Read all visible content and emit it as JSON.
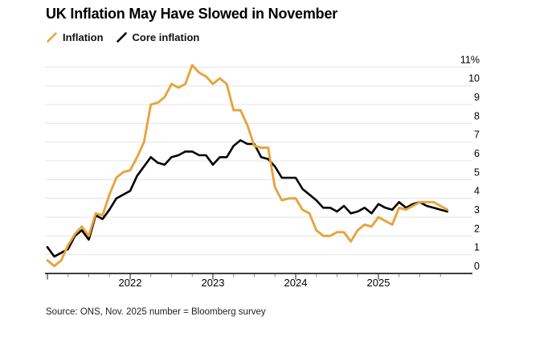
{
  "header": {
    "title": "UK Inflation May Have Slowed in November"
  },
  "legend": {
    "items": [
      {
        "label": "Inflation",
        "color": "#E8A33C"
      },
      {
        "label": "Core inflation",
        "color": "#000000"
      }
    ]
  },
  "footer": {
    "source": "Source: ONS, Nov. 2025 number = Bloomberg survey"
  },
  "colors": {
    "accent_orange": "#E8A33C",
    "line_black": "#000000",
    "grid": "#E4E4E4",
    "axis": "#000000",
    "tick_minor": "#8A8A8A",
    "tick_major": "#1A1A1A",
    "text": "#000000"
  },
  "chart_data": {
    "type": "line",
    "title": "UK Inflation May Have Slowed in November",
    "x_unit": "month",
    "x_start": "2021-01",
    "x_end": "2025-11",
    "x_tick_labels": [
      "2022",
      "2023",
      "2024",
      "2025"
    ],
    "x_minor_tick_interval_months": 3,
    "grid": "horizontal",
    "legend_position": "top-left",
    "y_axis": {
      "min": 0,
      "max": 11,
      "tick_step": 1,
      "top_tick_label": "11%",
      "unit": "percent"
    },
    "series": [
      {
        "name": "Inflation",
        "color": "#E8A33C",
        "width": 2.9,
        "values": [
          0.7,
          0.4,
          0.7,
          1.5,
          2.1,
          2.5,
          2.0,
          3.2,
          3.1,
          4.2,
          5.1,
          5.4,
          5.5,
          6.2,
          7.0,
          9.0,
          9.1,
          9.4,
          10.1,
          9.9,
          10.1,
          11.1,
          10.7,
          10.5,
          10.1,
          10.4,
          10.1,
          8.7,
          8.7,
          7.9,
          6.8,
          6.7,
          6.7,
          4.6,
          3.9,
          4.0,
          4.0,
          3.4,
          3.2,
          2.3,
          2.0,
          2.0,
          2.2,
          2.2,
          1.7,
          2.3,
          2.6,
          2.5,
          3.0,
          2.8,
          2.6,
          3.5,
          3.4,
          3.6,
          3.8,
          3.8,
          3.8,
          3.6,
          3.4
        ]
      },
      {
        "name": "Core inflation",
        "color": "#000000",
        "width": 2.6,
        "values": [
          1.4,
          0.9,
          1.1,
          1.3,
          2.0,
          2.3,
          1.8,
          3.1,
          2.9,
          3.4,
          4.0,
          4.2,
          4.4,
          5.2,
          5.7,
          6.2,
          5.9,
          5.8,
          6.2,
          6.3,
          6.5,
          6.5,
          6.3,
          6.3,
          5.8,
          6.2,
          6.2,
          6.8,
          7.1,
          6.9,
          6.9,
          6.2,
          6.1,
          5.7,
          5.1,
          5.1,
          5.1,
          4.5,
          4.2,
          3.9,
          3.5,
          3.5,
          3.3,
          3.6,
          3.2,
          3.3,
          3.5,
          3.2,
          3.7,
          3.5,
          3.4,
          3.8,
          3.5,
          3.7,
          3.8,
          3.6,
          3.5,
          3.4,
          3.3
        ]
      }
    ]
  }
}
